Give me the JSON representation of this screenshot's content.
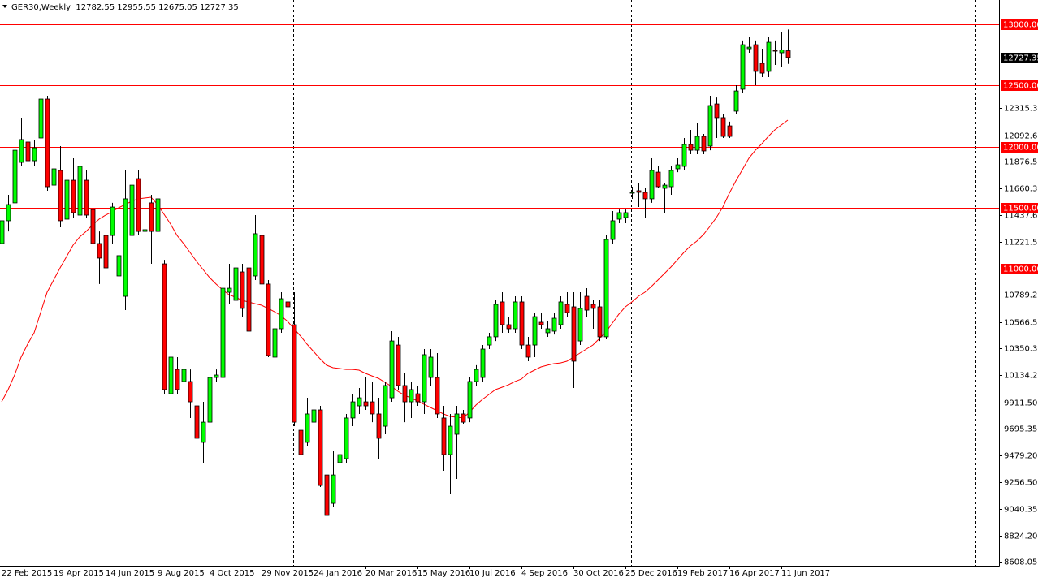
{
  "chart_data": {
    "type": "candlestick",
    "title": "GER30,Weekly  12782.55 12955.55 12675.05 12727.35",
    "categories": [
      "22 Feb 2015",
      null,
      null,
      null,
      null,
      null,
      null,
      null,
      "19 Apr 2015",
      null,
      null,
      null,
      null,
      null,
      null,
      null,
      "14 Jun 2015",
      null,
      null,
      null,
      null,
      null,
      null,
      null,
      "9 Aug 2015",
      null,
      null,
      null,
      null,
      null,
      null,
      null,
      "4 Oct 2015",
      null,
      null,
      null,
      null,
      null,
      null,
      null,
      "29 Nov 2015",
      null,
      null,
      null,
      null,
      null,
      null,
      null,
      "24 Jan 2016",
      null,
      null,
      null,
      null,
      null,
      null,
      null,
      "20 Mar 2016",
      null,
      null,
      null,
      null,
      null,
      null,
      null,
      "15 May 2016",
      null,
      null,
      null,
      null,
      null,
      null,
      null,
      "10 Jul 2016",
      null,
      null,
      null,
      null,
      null,
      null,
      null,
      "4 Sep 2016",
      null,
      null,
      null,
      null,
      null,
      null,
      null,
      "30 Oct 2016",
      null,
      null,
      null,
      null,
      null,
      null,
      null,
      "25 Dec 2016",
      null,
      null,
      null,
      null,
      null,
      null,
      null,
      "19 Feb 2017",
      null,
      null,
      null,
      null,
      null,
      null,
      null,
      "16 Apr 2017",
      null,
      null,
      null,
      null,
      null,
      null,
      null,
      "11 Jun 2017",
      null
    ],
    "open": [
      11208,
      11394,
      11540,
      11871,
      12037,
      11884,
      12070,
      12388,
      11685,
      11805,
      11407,
      11725,
      11440,
      11725,
      11486,
      11208,
      11274,
      11274,
      10943,
      10777,
      11274,
      11738,
      11307,
      11540,
      11307,
      11042,
      9981,
      10180,
      10081,
      10081,
      9882,
      9584,
      9749,
      10114,
      10114,
      10810,
      10744,
      10976,
      11009,
      10943,
      11274,
      10877,
      10280,
      10512,
      10731,
      10545,
      9683,
      9584,
      9749,
      9849,
      9318,
      9086,
      9418,
      9451,
      9783,
      9882,
      9915,
      9915,
      9816,
      9716,
      9948,
      10379,
      10048,
      9915,
      9981,
      9915,
      10114,
      10114,
      9783,
      9484,
      9650,
      9816,
      9783,
      10081,
      10114,
      10379,
      10446,
      10731,
      10545,
      10512,
      10731,
      10379,
      10379,
      10565,
      10479,
      10492,
      10545,
      10711,
      10691,
      10412,
      10777,
      10711,
      10691,
      10446,
      11241,
      11407,
      11420,
      11619,
      11639,
      11626,
      11573,
      11791,
      11659,
      11672,
      11818,
      11838,
      12017,
      11970,
      12083,
      12004,
      12348,
      12236,
      12169,
      12289,
      12468,
      12799,
      12832,
      12680,
      12614,
      12786,
      12766,
      12782.55
    ],
    "high": [
      11460,
      11606,
      12037,
      12236,
      12083,
      12057,
      12415,
      12415,
      11937,
      12004,
      11838,
      11904,
      11937,
      11805,
      11540,
      11307,
      11407,
      11540,
      11208,
      11805,
      11805,
      11805,
      11374,
      11606,
      11606,
      11075,
      10412,
      10280,
      10512,
      10180,
      10015,
      9915,
      10147,
      10180,
      10877,
      11042,
      11075,
      11042,
      11208,
      11440,
      11307,
      10910,
      10877,
      10810,
      10843,
      10810,
      10180,
      9948,
      9915,
      9882,
      9385,
      9517,
      9584,
      9816,
      9981,
      10028,
      10114,
      10081,
      9948,
      10081,
      10492,
      10446,
      10147,
      10081,
      10048,
      10346,
      10346,
      10313,
      9882,
      9816,
      9882,
      9849,
      10114,
      10214,
      10379,
      10479,
      10744,
      10810,
      10611,
      10777,
      10777,
      10446,
      10644,
      10644,
      10578,
      10644,
      10777,
      10810,
      10810,
      10810,
      10843,
      10744,
      10744,
      11274,
      11473,
      11486,
      11486,
      11672,
      11705,
      11659,
      11904,
      11838,
      11705,
      11838,
      11904,
      12070,
      12136,
      12189,
      12103,
      12415,
      12401,
      12269,
      12203,
      12501,
      12866,
      12899,
      12866,
      12799,
      12899,
      12866,
      12932,
      12955.55
    ],
    "low": [
      11075,
      11307,
      11486,
      11838,
      11838,
      11838,
      12037,
      11639,
      11619,
      11341,
      11354,
      11420,
      11407,
      11420,
      11109,
      10877,
      10877,
      11208,
      10877,
      10664,
      11208,
      11274,
      11274,
      11042,
      11274,
      9981,
      9338,
      9981,
      9915,
      9783,
      9365,
      9418,
      9716,
      10081,
      10081,
      10711,
      10678,
      10611,
      10479,
      10910,
      10843,
      10280,
      10114,
      10479,
      10678,
      9716,
      9451,
      9551,
      9716,
      9219,
      8689,
      9053,
      9352,
      9418,
      9716,
      9816,
      9849,
      9749,
      9451,
      9650,
      9915,
      10015,
      9749,
      9783,
      9882,
      9816,
      10048,
      9783,
      9352,
      9166,
      9285,
      9736,
      9749,
      10048,
      10081,
      10346,
      10412,
      10479,
      10479,
      10479,
      10346,
      10247,
      10280,
      10512,
      10446,
      10465,
      10512,
      10611,
      10028,
      10379,
      10611,
      10512,
      10412,
      10426,
      11208,
      11374,
      11374,
      11573,
      11506,
      11420,
      11540,
      11659,
      11460,
      11606,
      11791,
      11805,
      11937,
      11937,
      11937,
      11970,
      12070,
      12070,
      12070,
      12269,
      12435,
      12766,
      12501,
      12567,
      12567,
      12667,
      12653,
      12675.05
    ],
    "close": [
      11394,
      11526,
      11970,
      12057,
      11884,
      11990,
      12388,
      11672,
      11818,
      11394,
      11725,
      11460,
      11838,
      11440,
      11208,
      11089,
      11009,
      11506,
      11109,
      11573,
      11685,
      11307,
      11321,
      11307,
      11573,
      10015,
      10280,
      10015,
      10180,
      9915,
      9617,
      9749,
      10114,
      10134,
      10843,
      10843,
      11009,
      10678,
      10492,
      11288,
      10877,
      10293,
      10512,
      10757,
      10691,
      9749,
      9484,
      9816,
      9849,
      9232,
      8987,
      9318,
      9484,
      9783,
      9915,
      9948,
      9882,
      9816,
      9617,
      10048,
      10412,
      10048,
      9915,
      10015,
      9915,
      10300,
      10280,
      9816,
      9484,
      9716,
      9816,
      9749,
      10081,
      10180,
      10346,
      10446,
      10711,
      10545,
      10512,
      10731,
      10379,
      10280,
      10611,
      10545,
      10512,
      10598,
      10731,
      10644,
      10247,
      10678,
      10664,
      10678,
      10446,
      11241,
      11394,
      11460,
      11460,
      11626,
      11626,
      11573,
      11805,
      11672,
      11685,
      11805,
      11851,
      12017,
      11970,
      12083,
      11964,
      12335,
      12236,
      12083,
      12083,
      12454,
      12832,
      12812,
      12614,
      12600,
      12852,
      12779,
      12790,
      12727.35
    ],
    "up_color": "#00ff00",
    "down_color": "#ff0000",
    "wick_color": "#000000",
    "moving_average": {
      "color": "#ff0000",
      "values": [
        9915,
        10015,
        10134,
        10280,
        10386,
        10479,
        10644,
        10810,
        10910,
        11009,
        11102,
        11195,
        11261,
        11307,
        11360,
        11407,
        11440,
        11467,
        11500,
        11526,
        11553,
        11573,
        11579,
        11586,
        11526,
        11447,
        11367,
        11274,
        11208,
        11135,
        11062,
        10996,
        10930,
        10877,
        10830,
        10790,
        10770,
        10744,
        10731,
        10717,
        10704,
        10678,
        10651,
        10618,
        10572,
        10512,
        10452,
        10386,
        10326,
        10267,
        10214,
        10194,
        10187,
        10180,
        10180,
        10174,
        10147,
        10127,
        10107,
        10074,
        10041,
        10001,
        9968,
        9948,
        9922,
        9895,
        9869,
        9842,
        9816,
        9796,
        9789,
        9783,
        9829,
        9889,
        9935,
        9975,
        10015,
        10034,
        10054,
        10081,
        10101,
        10147,
        10174,
        10200,
        10214,
        10227,
        10233,
        10247,
        10280,
        10313,
        10346,
        10379,
        10432,
        10485,
        10558,
        10631,
        10691,
        10731,
        10777,
        10810,
        10857,
        10910,
        10963,
        11016,
        11075,
        11135,
        11188,
        11228,
        11281,
        11347,
        11420,
        11506,
        11619,
        11719,
        11811,
        11904,
        11970,
        12023,
        12083,
        12136,
        12176,
        12216
      ]
    },
    "levels": [
      {
        "value": 13000,
        "label": "13000.00"
      },
      {
        "value": 12500,
        "label": "12500.00"
      },
      {
        "value": 12000,
        "label": "12000.00"
      },
      {
        "value": 11500,
        "label": "11500.00"
      },
      {
        "value": 11000,
        "label": "11000.00"
      }
    ],
    "level_color": "#ff0000",
    "ylim": [
      8576,
      13197
    ],
    "yticks": [
      12315.35,
      12092.65,
      {
        "value": 11876.5,
        "label": "11876.50"
      },
      11660.35,
      11437.65,
      {
        "value": 11221.5,
        "label": "11221.50"
      },
      {
        "value": 10789.2,
        "label": "10789.20"
      },
      {
        "value": 10566.5,
        "label": "10566.50"
      },
      10350.35,
      {
        "value": 10134.2,
        "label": "10134.20"
      },
      {
        "value": 9911.5,
        "label": "9911.50"
      },
      9695.35,
      {
        "value": 9479.2,
        "label": "9479.20"
      },
      {
        "value": 9256.5,
        "label": "9256.50"
      },
      9040.35,
      {
        "value": 8824.2,
        "label": "8824.20"
      },
      8608.05
    ]
  }
}
